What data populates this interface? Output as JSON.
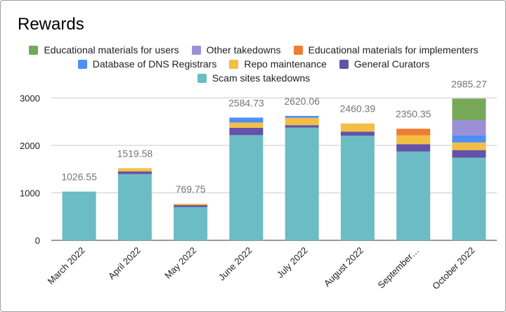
{
  "chart_data": {
    "type": "bar",
    "stacked": true,
    "title": "Rewards",
    "xlabel": "",
    "ylabel": "",
    "ylim": [
      0,
      3300
    ],
    "yticks": [
      0,
      1000,
      2000,
      3000
    ],
    "grid": true,
    "legend_position": "top",
    "categories": [
      "March 2022",
      "April 2022",
      "May 2022",
      "June 2022",
      "July 2022",
      "August 2022",
      "September…",
      "October 2022"
    ],
    "totals": [
      1026.55,
      1519.58,
      769.75,
      2584.73,
      2620.06,
      2460.39,
      2350.35,
      2985.27
    ],
    "series": [
      {
        "name": "Scam sites takedowns",
        "color": "#6bbcc4",
        "values": [
          1026.55,
          1395,
          700,
          2215,
          2375,
          2205,
          1870,
          1740
        ]
      },
      {
        "name": "General Curators",
        "color": "#6352a8",
        "values": [
          0,
          55,
          40,
          155,
          50,
          85,
          155,
          160
        ]
      },
      {
        "name": "Repo maintenance",
        "color": "#f3bf43",
        "values": [
          0,
          69.58,
          29.75,
          110,
          155,
          170.39,
          185,
          160
        ]
      },
      {
        "name": "Database of DNS Registrars",
        "color": "#4e8ef7",
        "values": [
          0,
          0,
          0,
          104.73,
          40.06,
          0,
          0,
          150
        ]
      },
      {
        "name": "Educational materials for implementers",
        "color": "#f07b33",
        "values": [
          0,
          0,
          0,
          0,
          0,
          0,
          140.35,
          0
        ]
      },
      {
        "name": "Other takedowns",
        "color": "#9b8fd6",
        "values": [
          0,
          0,
          0,
          0,
          0,
          0,
          0,
          320
        ]
      },
      {
        "name": "Educational materials for users",
        "color": "#77a85a",
        "values": [
          0,
          0,
          0,
          0,
          0,
          0,
          0,
          455.27
        ]
      }
    ]
  },
  "legend": {
    "rows": [
      [
        {
          "label": "Educational materials for users",
          "color": "#77a85a"
        },
        {
          "label": "Other takedowns",
          "color": "#9b8fd6"
        },
        {
          "label": "Educational materials for implementers",
          "color": "#f07b33"
        }
      ],
      [
        {
          "label": "Database of DNS Registrars",
          "color": "#4e8ef7"
        },
        {
          "label": "Repo maintenance",
          "color": "#f3bf43"
        },
        {
          "label": "General Curators",
          "color": "#6352a8"
        }
      ],
      [
        {
          "label": "Scam sites takedowns",
          "color": "#6bbcc4"
        }
      ]
    ]
  }
}
